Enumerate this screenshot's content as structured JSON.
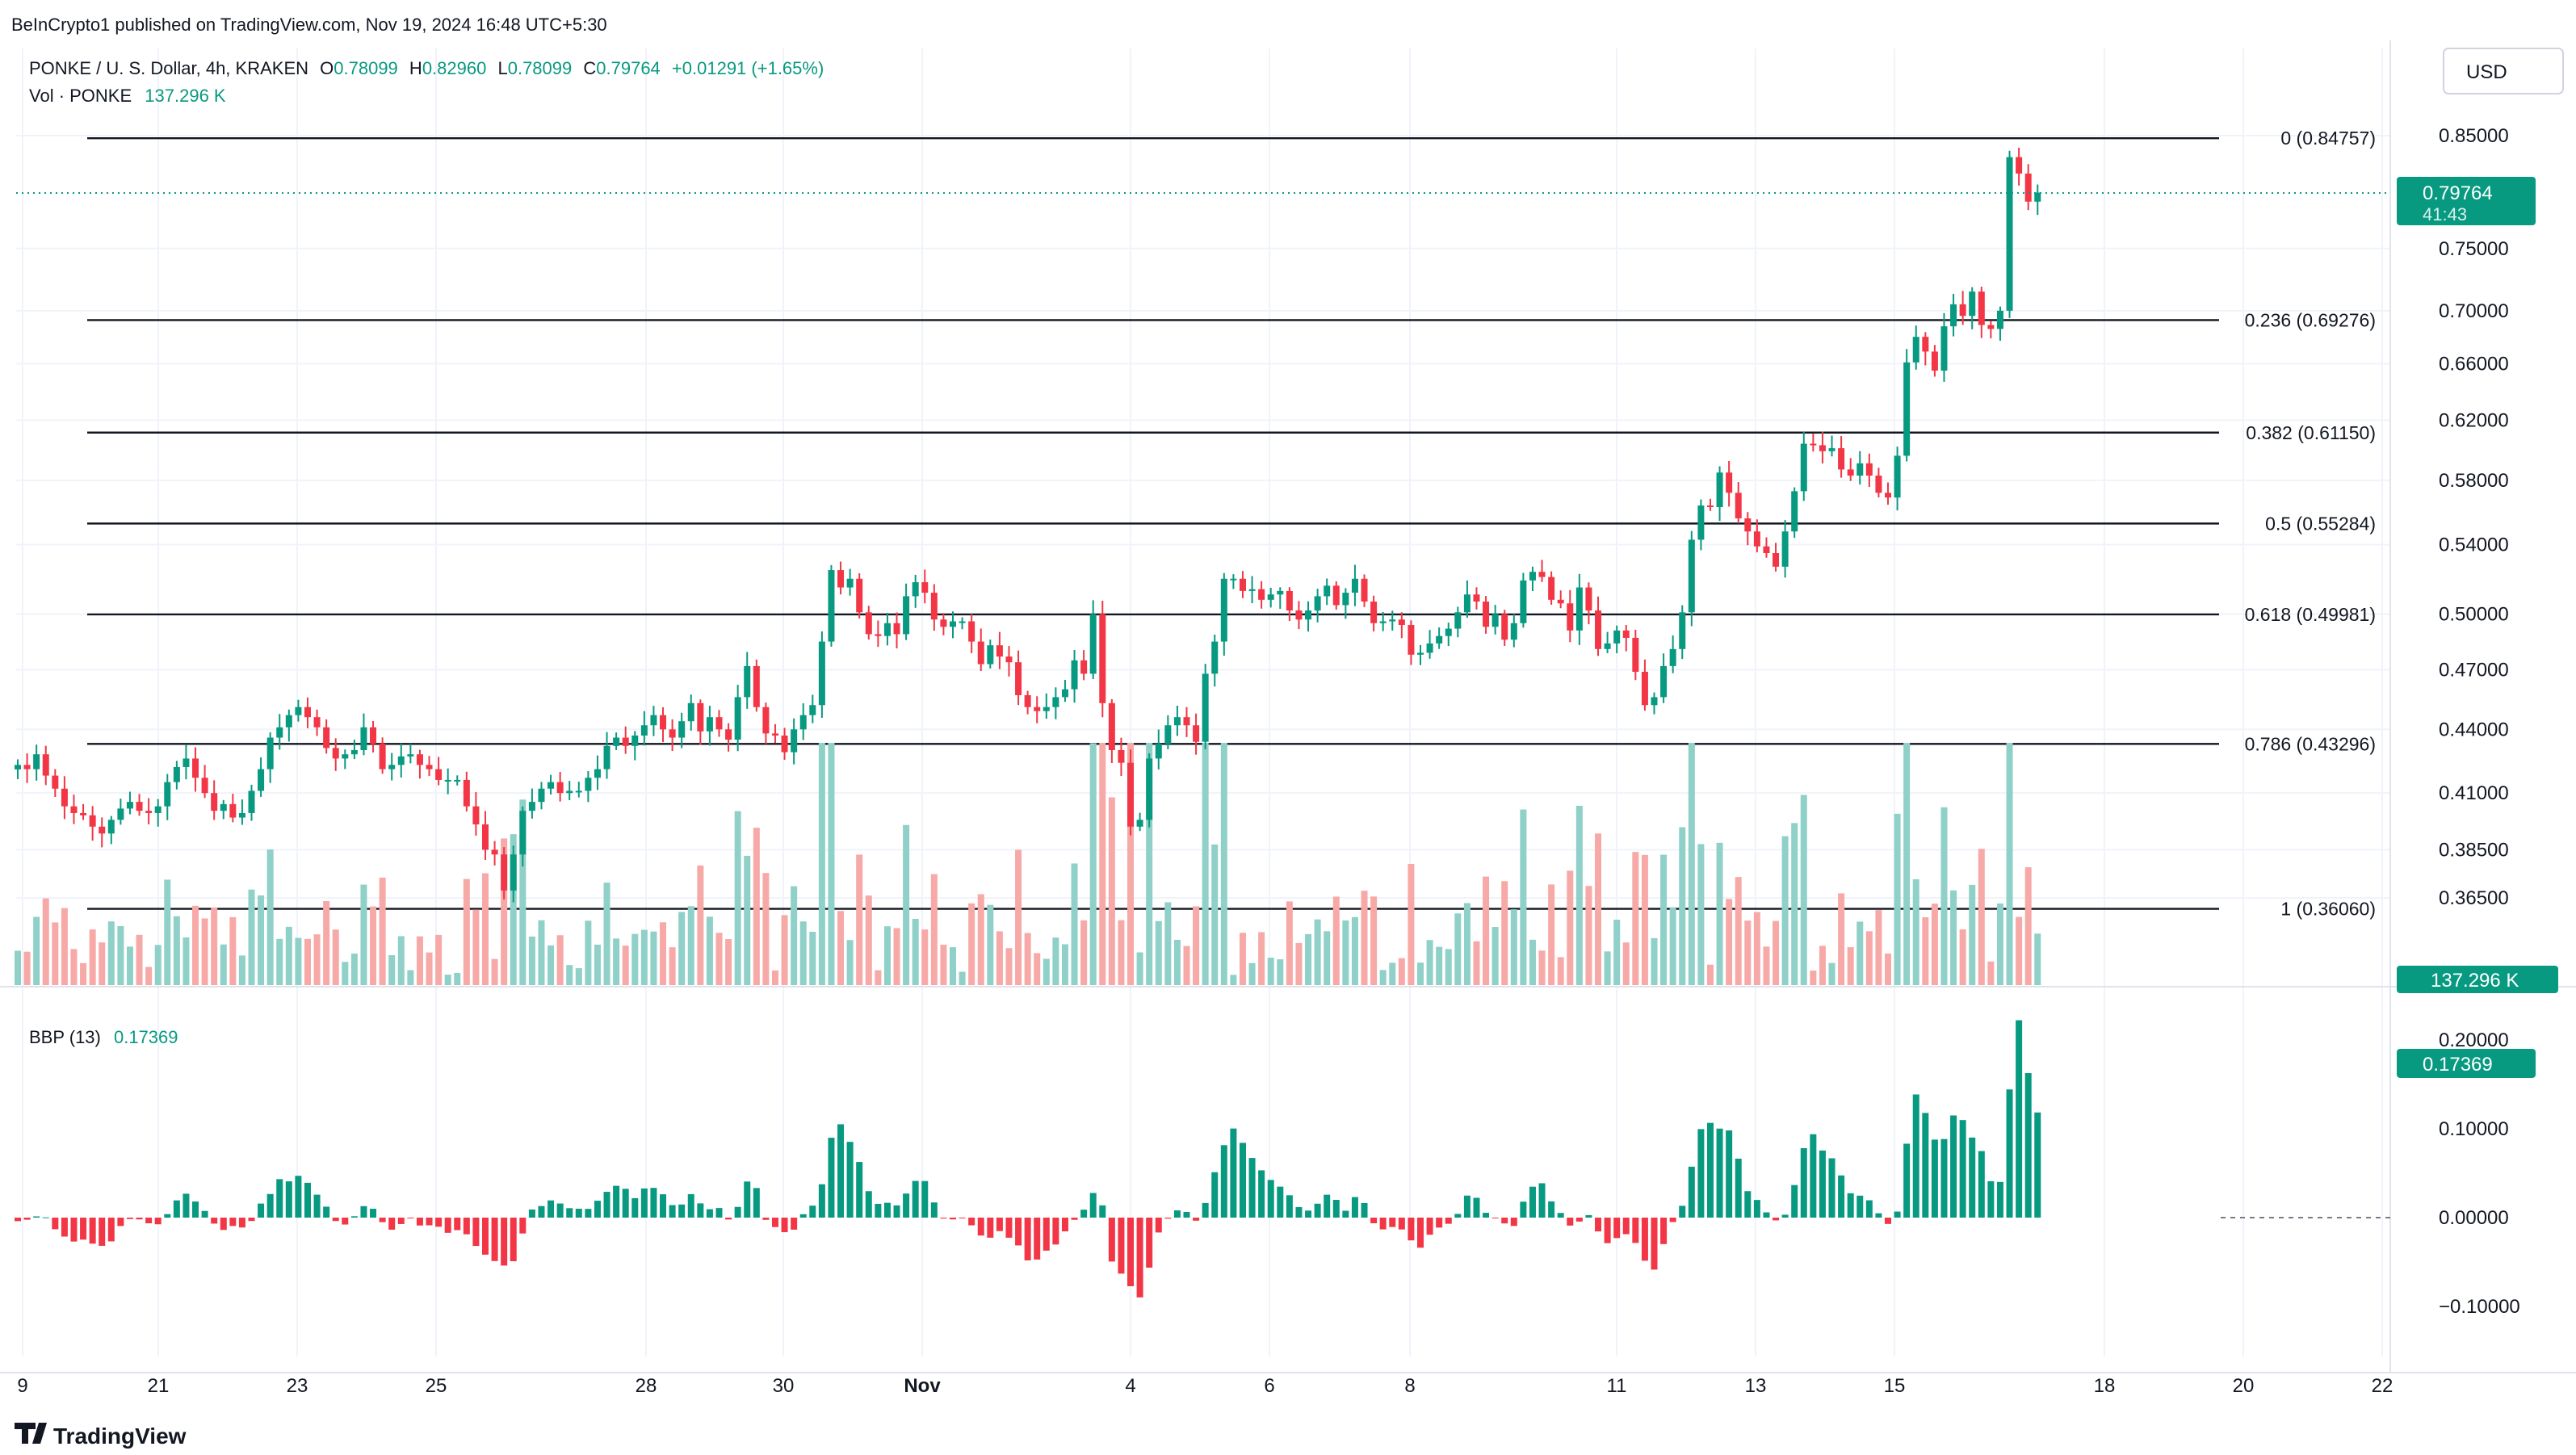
{
  "header": {
    "publisher": "BeInCrypto1 published on TradingView.com, Nov 19, 2024 16:48 UTC+5:30",
    "symbol": "PONKE / U. S. Dollar, 4h, KRAKEN",
    "o_label": "O",
    "o_value": "0.78099",
    "h_label": "H",
    "h_value": "0.82960",
    "l_label": "L",
    "l_value": "0.78099",
    "c_label": "C",
    "c_value": "0.79764",
    "change": "+0.01291 (+1.65%)",
    "vol_label": "Vol · PONKE",
    "vol_value": "137.296 K",
    "currency": "USD"
  },
  "price_axis": {
    "ticks": [
      "0.85000",
      "0.75000",
      "0.70000",
      "0.66000",
      "0.62000",
      "0.58000",
      "0.54000",
      "0.50000",
      "0.47000",
      "0.44000",
      "0.41000",
      "0.38500",
      "0.36500"
    ],
    "current_price": "0.79764",
    "countdown": "41:43",
    "volume_badge": "137.296 K"
  },
  "indicator": {
    "name": "BBP (13)",
    "value": "0.17369",
    "ticks": [
      "0.20000",
      "0.10000",
      "0.00000",
      "−0.10000"
    ],
    "badge": "0.17369"
  },
  "fib_levels": [
    {
      "ratio": "0",
      "price": 0.84757,
      "label": "0 (0.84757)"
    },
    {
      "ratio": "0.236",
      "price": 0.69276,
      "label": "0.236 (0.69276)"
    },
    {
      "ratio": "0.382",
      "price": 0.6115,
      "label": "0.382 (0.61150)"
    },
    {
      "ratio": "0.5",
      "price": 0.55284,
      "label": "0.5 (0.55284)"
    },
    {
      "ratio": "0.618",
      "price": 0.49981,
      "label": "0.618 (0.49981)"
    },
    {
      "ratio": "0.786",
      "price": 0.43296,
      "label": "0.786 (0.43296)"
    },
    {
      "ratio": "1",
      "price": 0.3606,
      "label": "1 (0.36060)"
    }
  ],
  "x_axis": {
    "labels": [
      "9",
      "21",
      "23",
      "25",
      "28",
      "30",
      "Nov",
      "4",
      "6",
      "8",
      "11",
      "13",
      "15",
      "18",
      "20",
      "22"
    ]
  },
  "footer": {
    "brand": "TradingView"
  },
  "colors": {
    "up": "#089981",
    "down": "#f23645",
    "up_vol": "#8fd0c8",
    "down_vol": "#f7a9a7",
    "bbp_pos": "#089981",
    "bbp_neg": "#f23645"
  },
  "chart_data": {
    "type": "candlestick",
    "title": "PONKE / U. S. Dollar, 4h, KRAKEN",
    "timeframe": "4h",
    "x_start": "Oct 19, 2024",
    "ylim": [
      0.34,
      0.87
    ],
    "scale": "log",
    "closes": [
      0.423,
      0.421,
      0.428,
      0.418,
      0.412,
      0.404,
      0.401,
      0.4,
      0.395,
      0.392,
      0.398,
      0.403,
      0.406,
      0.402,
      0.401,
      0.404,
      0.415,
      0.422,
      0.426,
      0.417,
      0.41,
      0.402,
      0.405,
      0.399,
      0.401,
      0.411,
      0.421,
      0.436,
      0.441,
      0.447,
      0.451,
      0.446,
      0.441,
      0.431,
      0.426,
      0.428,
      0.43,
      0.441,
      0.433,
      0.421,
      0.423,
      0.427,
      0.428,
      0.423,
      0.421,
      0.416,
      0.416,
      0.416,
      0.404,
      0.396,
      0.385,
      0.383,
      0.368,
      0.383,
      0.402,
      0.406,
      0.412,
      0.415,
      0.41,
      0.411,
      0.411,
      0.417,
      0.421,
      0.432,
      0.436,
      0.432,
      0.437,
      0.442,
      0.447,
      0.44,
      0.436,
      0.444,
      0.453,
      0.439,
      0.446,
      0.44,
      0.435,
      0.456,
      0.472,
      0.451,
      0.438,
      0.437,
      0.429,
      0.44,
      0.447,
      0.452,
      0.485,
      0.525,
      0.515,
      0.52,
      0.501,
      0.489,
      0.488,
      0.495,
      0.489,
      0.51,
      0.518,
      0.512,
      0.497,
      0.493,
      0.496,
      0.496,
      0.485,
      0.473,
      0.483,
      0.477,
      0.474,
      0.457,
      0.451,
      0.449,
      0.451,
      0.456,
      0.46,
      0.475,
      0.468,
      0.5,
      0.453,
      0.43,
      0.424,
      0.395,
      0.398,
      0.426,
      0.433,
      0.442,
      0.446,
      0.442,
      0.434,
      0.468,
      0.485,
      0.52,
      0.52,
      0.513,
      0.514,
      0.508,
      0.511,
      0.513,
      0.502,
      0.497,
      0.502,
      0.51,
      0.516,
      0.505,
      0.512,
      0.52,
      0.507,
      0.495,
      0.496,
      0.497,
      0.494,
      0.478,
      0.479,
      0.484,
      0.488,
      0.492,
      0.501,
      0.511,
      0.507,
      0.493,
      0.5,
      0.486,
      0.495,
      0.519,
      0.524,
      0.521,
      0.508,
      0.506,
      0.491,
      0.515,
      0.502,
      0.481,
      0.484,
      0.491,
      0.487,
      0.469,
      0.452,
      0.456,
      0.472,
      0.481,
      0.501,
      0.543,
      0.564,
      0.563,
      0.585,
      0.572,
      0.556,
      0.548,
      0.539,
      0.535,
      0.527,
      0.548,
      0.573,
      0.604,
      0.603,
      0.599,
      0.601,
      0.587,
      0.583,
      0.591,
      0.583,
      0.572,
      0.569,
      0.596,
      0.661,
      0.68,
      0.669,
      0.655,
      0.688,
      0.705,
      0.696,
      0.715,
      0.689,
      0.686,
      0.7,
      0.83,
      0.815,
      0.79,
      0.798
    ]
  }
}
